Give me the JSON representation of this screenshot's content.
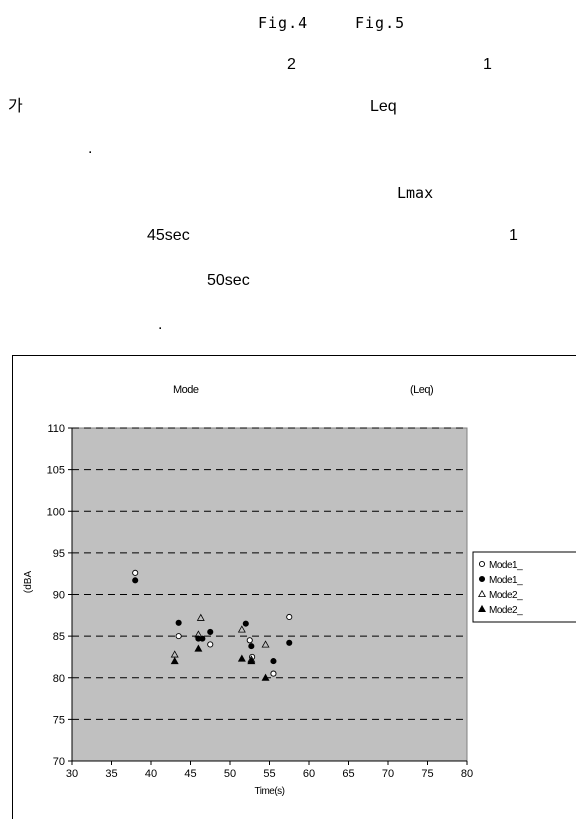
{
  "text_lines": [
    {
      "id": "fig4",
      "text": "Fig.4"
    },
    {
      "id": "fig5",
      "text": "Fig.5"
    },
    {
      "id": "two",
      "text": "2"
    },
    {
      "id": "one_a",
      "text": "1"
    },
    {
      "id": "ga",
      "text": "가"
    },
    {
      "id": "leq",
      "text": "Leq"
    },
    {
      "id": "dot1",
      "text": "."
    },
    {
      "id": "lmax",
      "text": "Lmax"
    },
    {
      "id": "t45",
      "text": "45sec"
    },
    {
      "id": "one_b",
      "text": "1"
    },
    {
      "id": "t50",
      "text": "50sec"
    },
    {
      "id": "dot2",
      "text": "."
    }
  ],
  "chart_data": {
    "type": "scatter",
    "title_left": "Mode",
    "title_right": "(Leq)",
    "xlabel": "Time(s)",
    "ylabel": "(dBA",
    "xlim": [
      30,
      80
    ],
    "ylim": [
      70,
      110
    ],
    "xticks": [
      30,
      35,
      40,
      45,
      50,
      55,
      60,
      65,
      70,
      75,
      80
    ],
    "yticks": [
      70,
      75,
      80,
      85,
      90,
      95,
      100,
      105,
      110
    ],
    "grid": "horizontal-dashed",
    "background": "#c0c0c0",
    "legend_position": "right",
    "series": [
      {
        "name": "Mode1_",
        "marker": "circle-open",
        "points": [
          [
            38,
            92.6
          ],
          [
            43.5,
            85
          ],
          [
            47.5,
            84
          ],
          [
            52.5,
            84.5
          ],
          [
            52.8,
            82.5
          ],
          [
            55.5,
            80.5
          ],
          [
            57.5,
            87.3
          ]
        ]
      },
      {
        "name": "Mode1_",
        "marker": "circle-filled",
        "points": [
          [
            38,
            91.7
          ],
          [
            43.5,
            86.6
          ],
          [
            46,
            84.7
          ],
          [
            46.5,
            84.7
          ],
          [
            47.5,
            85.5
          ],
          [
            52,
            86.5
          ],
          [
            52.7,
            83.8
          ],
          [
            55.5,
            82
          ],
          [
            57.5,
            84.2
          ]
        ]
      },
      {
        "name": "Mode2_",
        "marker": "triangle-open",
        "points": [
          [
            43,
            82.8
          ],
          [
            46,
            85.2
          ],
          [
            46.3,
            87.2
          ],
          [
            51.5,
            85.8
          ],
          [
            52.7,
            82.2
          ],
          [
            54.5,
            84
          ]
        ]
      },
      {
        "name": "Mode2_",
        "marker": "triangle-filled",
        "points": [
          [
            43,
            82
          ],
          [
            46,
            83.5
          ],
          [
            51.5,
            82.3
          ],
          [
            52.7,
            82
          ],
          [
            54.5,
            80
          ]
        ]
      }
    ]
  }
}
